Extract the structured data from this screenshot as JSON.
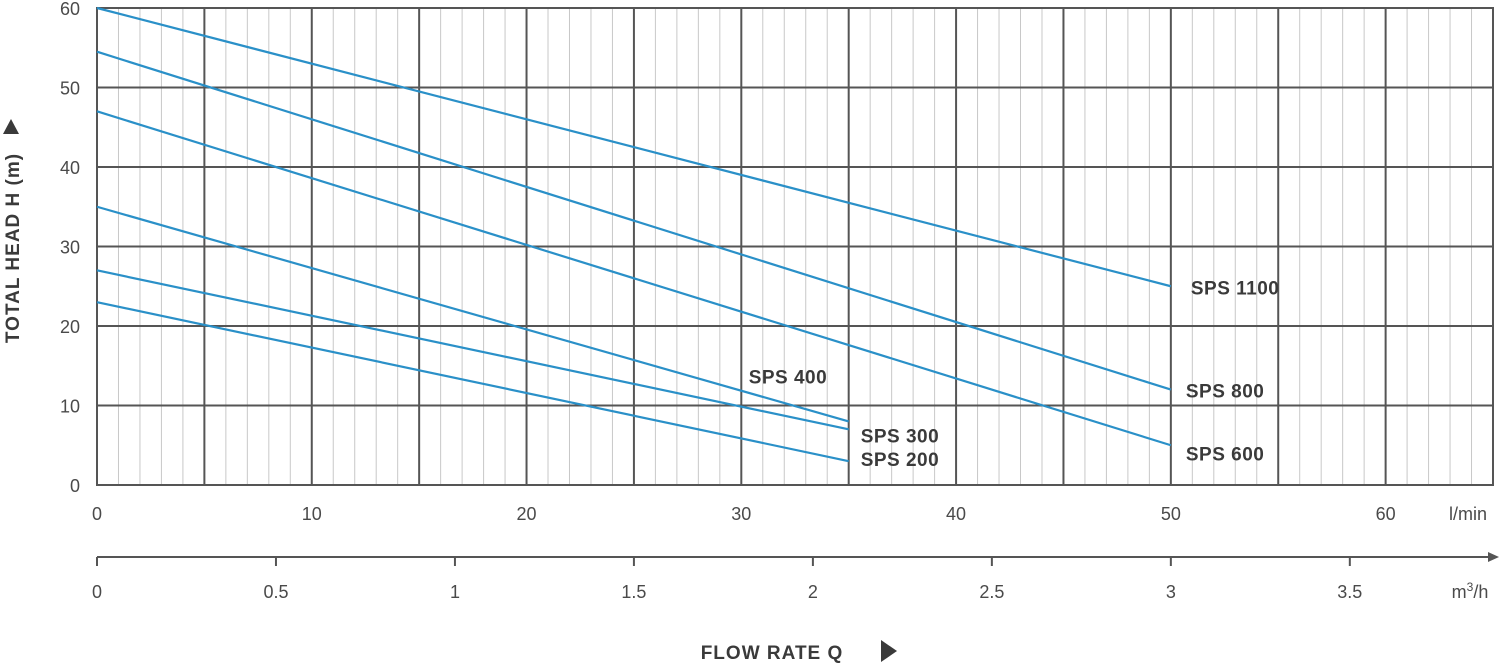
{
  "chart_data": {
    "type": "line",
    "ylabel": "TOTAL HEAD H (m)",
    "xlabel": "FLOW RATE Q",
    "x_unit": "l/min",
    "x2_unit_base": "m",
    "x2_unit_sup": "3",
    "x2_unit_tail": "/h",
    "xlim": [
      0,
      65
    ],
    "ylim": [
      0,
      60
    ],
    "x_ticks": [
      0,
      10,
      20,
      30,
      40,
      50,
      60
    ],
    "y_ticks": [
      0,
      10,
      20,
      30,
      40,
      50,
      60
    ],
    "x2_ticks": [
      "0",
      "0.5",
      "1",
      "1.5",
      "2",
      "2.5",
      "3",
      "3.5"
    ],
    "x2_tick_values": [
      0,
      0.5,
      1,
      1.5,
      2,
      2.5,
      3,
      3.5
    ],
    "grid": true,
    "line_color": "#2a90c8",
    "series": [
      {
        "name": "SPS 1100",
        "x": [
          0,
          50
        ],
        "y": [
          60,
          25
        ]
      },
      {
        "name": "SPS 800",
        "x": [
          0,
          50
        ],
        "y": [
          54.5,
          12
        ]
      },
      {
        "name": "SPS 600",
        "x": [
          0,
          50
        ],
        "y": [
          47,
          5
        ]
      },
      {
        "name": "SPS 400",
        "x": [
          0,
          35
        ],
        "y": [
          35,
          8
        ]
      },
      {
        "name": "SPS 300",
        "x": [
          0,
          35
        ],
        "y": [
          27,
          7
        ]
      },
      {
        "name": "SPS 200",
        "x": [
          0,
          35
        ],
        "y": [
          23,
          3
        ]
      }
    ]
  }
}
